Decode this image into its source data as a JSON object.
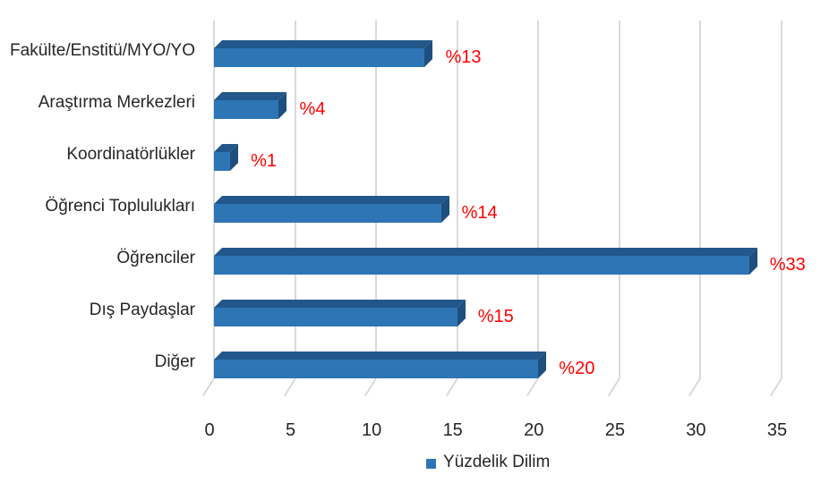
{
  "chart_data": {
    "type": "bar",
    "orientation": "horizontal",
    "style": "3d-extruded",
    "title": "",
    "categories": [
      "Fakülte/Enstitü/MYO/YO",
      "Araştırma Merkezleri",
      "Koordinatörlükler",
      "Öğrenci Toplulukları",
      "Öğrenciler",
      "Dış Paydaşlar",
      "Diğer"
    ],
    "values": [
      13,
      4,
      1,
      14,
      33,
      15,
      20
    ],
    "value_labels": [
      "%13",
      "%4",
      "%1",
      "%14",
      "%33",
      "%15",
      "%20"
    ],
    "x_tick_labels": [
      "0",
      "5",
      "10",
      "15",
      "20",
      "25",
      "30",
      "35"
    ],
    "x_ticks": [
      0,
      5,
      10,
      15,
      20,
      25,
      30,
      35
    ],
    "xlim": [
      0,
      35
    ],
    "grid": true,
    "legend": "Yüzdelik Dilim",
    "legend_position": "bottom-center",
    "colors": {
      "bar_front": "#2E75B6",
      "bar_top": "#21578A",
      "bar_side": "#1E4E7D",
      "value_label": "#FF0000",
      "gridline": "#D9D9D9",
      "text": "#262626",
      "background": "#FFFFFF"
    }
  }
}
